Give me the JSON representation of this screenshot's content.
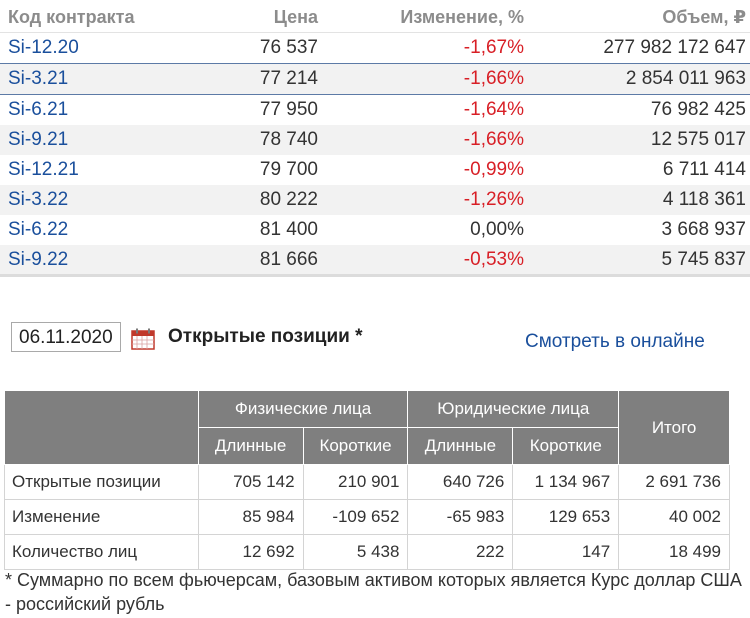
{
  "contracts": {
    "headers": {
      "code": "Код контракта",
      "price": "Цена",
      "change": "Изменение, %",
      "volume": "Объем, ₽"
    },
    "rows": [
      {
        "code": "Si-12.20",
        "price": "76 537",
        "change": "-1,67%",
        "volume": "277 982 172 647"
      },
      {
        "code": "Si-3.21",
        "price": "77 214",
        "change": "-1,66%",
        "volume": "2 854 011 963"
      },
      {
        "code": "Si-6.21",
        "price": "77 950",
        "change": "-1,64%",
        "volume": "76 982 425"
      },
      {
        "code": "Si-9.21",
        "price": "78 740",
        "change": "-1,66%",
        "volume": "12 575 017"
      },
      {
        "code": "Si-12.21",
        "price": "79 700",
        "change": "-0,99%",
        "volume": "6 711 414"
      },
      {
        "code": "Si-3.22",
        "price": "80 222",
        "change": "-1,26%",
        "volume": "4 118 361"
      },
      {
        "code": "Si-6.22",
        "price": "81 400",
        "change": "0,00%",
        "volume": "3 668 937"
      },
      {
        "code": "Si-9.22",
        "price": "81 666",
        "change": "-0,53%",
        "volume": "5 745 837"
      }
    ],
    "selected_index": 1
  },
  "date_input": {
    "value": "06.11.2020"
  },
  "open_interest": {
    "title": "Открытые позиции *",
    "online_link": "Смотреть в онлайне",
    "group_headers": {
      "individuals": "Физические лица",
      "legal": "Юридические лица",
      "total": "Итого"
    },
    "sub_headers": {
      "long": "Длинные",
      "short": "Короткие"
    },
    "rows": [
      {
        "label": "Открытые позиции",
        "ind_long": "705 142",
        "ind_short": "210 901",
        "leg_long": "640 726",
        "leg_short": "1 134 967",
        "total": "2 691 736"
      },
      {
        "label": "Изменение",
        "ind_long": "85 984",
        "ind_short": "-109 652",
        "leg_long": "-65 983",
        "leg_short": "129 653",
        "total": "40 002"
      },
      {
        "label": "Количество лиц",
        "ind_long": "12 692",
        "ind_short": "5 438",
        "leg_long": "222",
        "leg_short": "147",
        "total": "18 499"
      }
    ],
    "footnote": "* Суммарно по всем фьючерсам, базовым активом которых является Курс доллар США - российский рубль"
  },
  "colors": {
    "link": "#1a4f9c",
    "negative": "#d81f26",
    "header_gray": "#7f7f7f",
    "calendar_red": "#c0392b"
  }
}
